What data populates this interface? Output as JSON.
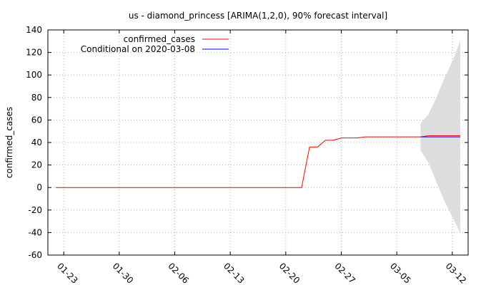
{
  "chart_data": {
    "type": "line",
    "title": "us - diamond_princess [ARIMA(1,2,0), 90% forecast interval]",
    "xlabel": "",
    "ylabel": "confirmed_cases",
    "ylim": [
      -60,
      140
    ],
    "yticks": [
      -60,
      -40,
      -20,
      0,
      20,
      40,
      60,
      80,
      100,
      120,
      140
    ],
    "xlim": [
      "2020-01-21",
      "2020-03-14"
    ],
    "xticks": [
      "01-23",
      "01-30",
      "02-06",
      "02-13",
      "02-20",
      "02-27",
      "03-05",
      "03-12"
    ],
    "grid": true,
    "legend_position": "top-left",
    "series": [
      {
        "name": "confirmed_cases",
        "color": "#ff0000",
        "points": [
          [
            "2020-01-22",
            0
          ],
          [
            "2020-01-23",
            0
          ],
          [
            "2020-01-24",
            0
          ],
          [
            "2020-01-25",
            0
          ],
          [
            "2020-01-26",
            0
          ],
          [
            "2020-01-27",
            0
          ],
          [
            "2020-01-28",
            0
          ],
          [
            "2020-01-29",
            0
          ],
          [
            "2020-01-30",
            0
          ],
          [
            "2020-01-31",
            0
          ],
          [
            "2020-02-01",
            0
          ],
          [
            "2020-02-02",
            0
          ],
          [
            "2020-02-03",
            0
          ],
          [
            "2020-02-04",
            0
          ],
          [
            "2020-02-05",
            0
          ],
          [
            "2020-02-06",
            0
          ],
          [
            "2020-02-07",
            0
          ],
          [
            "2020-02-08",
            0
          ],
          [
            "2020-02-09",
            0
          ],
          [
            "2020-02-10",
            0
          ],
          [
            "2020-02-11",
            0
          ],
          [
            "2020-02-12",
            0
          ],
          [
            "2020-02-13",
            0
          ],
          [
            "2020-02-14",
            0
          ],
          [
            "2020-02-15",
            0
          ],
          [
            "2020-02-16",
            0
          ],
          [
            "2020-02-17",
            0
          ],
          [
            "2020-02-18",
            0
          ],
          [
            "2020-02-19",
            0
          ],
          [
            "2020-02-20",
            0
          ],
          [
            "2020-02-21",
            0
          ],
          [
            "2020-02-22",
            0
          ],
          [
            "2020-02-23",
            36
          ],
          [
            "2020-02-24",
            36
          ],
          [
            "2020-02-25",
            42
          ],
          [
            "2020-02-26",
            42
          ],
          [
            "2020-02-27",
            44
          ],
          [
            "2020-02-28",
            44
          ],
          [
            "2020-02-29",
            44
          ],
          [
            "2020-03-01",
            45
          ],
          [
            "2020-03-02",
            45
          ],
          [
            "2020-03-03",
            45
          ],
          [
            "2020-03-04",
            45
          ],
          [
            "2020-03-05",
            45
          ],
          [
            "2020-03-06",
            45
          ],
          [
            "2020-03-07",
            45
          ],
          [
            "2020-03-08",
            45
          ],
          [
            "2020-03-09",
            46
          ],
          [
            "2020-03-10",
            46
          ],
          [
            "2020-03-11",
            46
          ],
          [
            "2020-03-12",
            46
          ],
          [
            "2020-03-13",
            46
          ]
        ]
      },
      {
        "name": "Conditional on 2020-03-08",
        "color": "#0000ff",
        "points": [
          [
            "2020-03-08",
            45
          ],
          [
            "2020-03-09",
            45
          ],
          [
            "2020-03-10",
            45
          ],
          [
            "2020-03-11",
            45
          ],
          [
            "2020-03-12",
            45
          ],
          [
            "2020-03-13",
            45
          ]
        ]
      }
    ],
    "forecast_interval": {
      "level": "90%",
      "color": "#dddddd",
      "points": [
        [
          "2020-03-08",
          33,
          57
        ],
        [
          "2020-03-09",
          22,
          65
        ],
        [
          "2020-03-10",
          5,
          80
        ],
        [
          "2020-03-11",
          -12,
          97
        ],
        [
          "2020-03-12",
          -26,
          112
        ],
        [
          "2020-03-13",
          -40,
          130
        ]
      ]
    }
  }
}
